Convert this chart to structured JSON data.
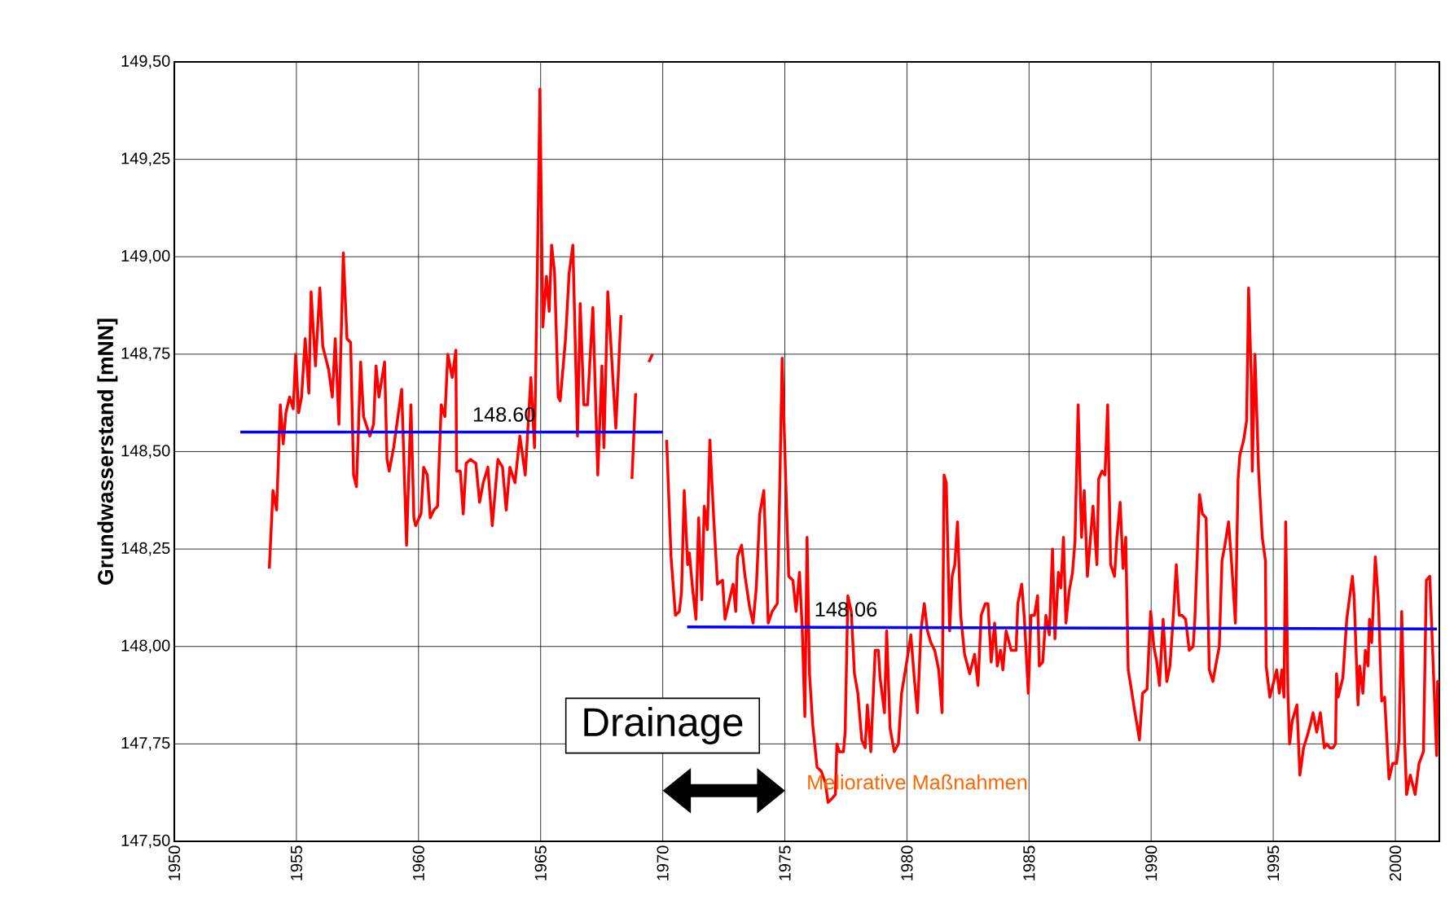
{
  "chart_data": {
    "type": "line",
    "ylabel": "Grundwasserstand [mNN]",
    "xlim": [
      1950,
      2001.8
    ],
    "xticks": [
      1950,
      1955,
      1960,
      1965,
      1970,
      1975,
      1980,
      1985,
      1990,
      1995,
      2000
    ],
    "ylim": [
      147.5,
      149.5
    ],
    "yticks": [
      {
        "value": 147.5,
        "label": "147,50"
      },
      {
        "value": 147.75,
        "label": "147,75"
      },
      {
        "value": 148.0,
        "label": "148,00"
      },
      {
        "value": 148.25,
        "label": "148,25"
      },
      {
        "value": 148.5,
        "label": "148,50"
      },
      {
        "value": 148.75,
        "label": "148,75"
      },
      {
        "value": 149.0,
        "label": "149,00"
      },
      {
        "value": 149.25,
        "label": "149,25"
      },
      {
        "value": 149.5,
        "label": "149,50"
      }
    ],
    "grid": true,
    "marker": "none",
    "series": [
      {
        "color": "#ff0000",
        "x": [
          1953.89,
          1954.04,
          1954.19,
          1954.34,
          1954.46,
          1954.57,
          1954.72,
          1954.87,
          1954.97,
          1955.09,
          1955.21,
          1955.36,
          1955.51,
          1955.6,
          1955.78,
          1955.96,
          1956.08,
          1956.32,
          1956.47,
          1956.59,
          1956.74,
          1956.92,
          1957.07,
          1957.22,
          1957.34,
          1957.46,
          1957.63,
          1957.75,
          1958.01,
          1958.16,
          1958.26,
          1958.38,
          1958.61,
          1958.71,
          1958.8,
          1958.98,
          1959.31,
          1959.51,
          1959.69,
          1959.81,
          1959.88,
          1960.1,
          1960.21,
          1960.36,
          1960.48,
          1960.63,
          1960.78,
          1960.93,
          1961.08,
          1961.2,
          1961.38,
          1961.53,
          1961.56,
          1961.71,
          1961.83,
          1961.95,
          1962.13,
          1962.35,
          1962.5,
          1962.65,
          1962.84,
          1963.02,
          1963.25,
          1963.44,
          1963.59,
          1963.74,
          1963.95,
          1964.15,
          1964.37,
          1964.6,
          1964.75,
          1964.9,
          1964.97,
          1965.09,
          1965.24,
          1965.35,
          1965.45,
          1965.57,
          1965.72,
          1965.8,
          1966.02,
          1966.17,
          1966.32,
          1966.51,
          1966.62,
          1966.77,
          1966.92,
          1967.14,
          1967.34,
          1967.51,
          1967.59,
          1967.75,
          1968.08,
          1968.29,
          1968.5,
          1968.74,
          1968.89,
          1969.15,
          1969.43,
          1969.58,
          1969.85,
          1970.16,
          1970.34,
          1970.52,
          1970.68,
          1970.77,
          1970.88,
          1971.02,
          1971.09,
          1971.22,
          1971.36,
          1971.47,
          1971.6,
          1971.7,
          1971.83,
          1971.93,
          1972.07,
          1972.24,
          1972.45,
          1972.55,
          1972.88,
          1972.99,
          1973.06,
          1973.23,
          1973.37,
          1973.56,
          1973.7,
          1973.83,
          1973.97,
          1974.14,
          1974.32,
          1974.48,
          1974.69,
          1974.78,
          1974.89,
          1975.03,
          1975.16,
          1975.33,
          1975.46,
          1975.6,
          1975.71,
          1975.82,
          1975.91,
          1976.01,
          1976.14,
          1976.32,
          1976.49,
          1976.66,
          1976.77,
          1976.93,
          1977.07,
          1977.13,
          1977.23,
          1977.4,
          1977.47,
          1977.58,
          1977.72,
          1977.85,
          1977.99,
          1978.15,
          1978.29,
          1978.38,
          1978.52,
          1978.7,
          1978.83,
          1978.9,
          1979.08,
          1979.17,
          1979.31,
          1979.48,
          1979.65,
          1979.78,
          1979.99,
          1980.16,
          1980.3,
          1980.43,
          1980.57,
          1980.71,
          1980.84,
          1980.98,
          1981.14,
          1981.3,
          1981.44,
          1981.52,
          1981.61,
          1981.75,
          1981.85,
          1981.96,
          1982.07,
          1982.2,
          1982.36,
          1982.57,
          1982.77,
          1982.91,
          1983.04,
          1983.21,
          1983.32,
          1983.45,
          1983.59,
          1983.7,
          1983.83,
          1983.93,
          1984.06,
          1984.27,
          1984.47,
          1984.54,
          1984.7,
          1984.81,
          1984.97,
          1985.08,
          1985.22,
          1985.35,
          1985.42,
          1985.56,
          1985.69,
          1985.83,
          1985.96,
          1986.06,
          1986.2,
          1986.3,
          1986.41,
          1986.51,
          1986.64,
          1986.78,
          1986.88,
          1987.01,
          1987.15,
          1987.26,
          1987.39,
          1987.62,
          1987.78,
          1987.85,
          1987.99,
          1988.11,
          1988.22,
          1988.34,
          1988.5,
          1988.6,
          1988.73,
          1988.85,
          1988.96,
          1989.06,
          1989.19,
          1989.31,
          1989.42,
          1989.52,
          1989.65,
          1989.83,
          1989.98,
          1990.11,
          1990.23,
          1990.34,
          1990.49,
          1990.64,
          1990.77,
          1990.9,
          1991.03,
          1991.15,
          1991.26,
          1991.41,
          1991.56,
          1991.72,
          1991.79,
          1991.98,
          1992.1,
          1992.25,
          1992.38,
          1992.53,
          1992.64,
          1992.79,
          1992.9,
          1993.02,
          1993.17,
          1993.3,
          1993.45,
          1993.56,
          1993.63,
          1993.79,
          1993.91,
          1993.99,
          1994.1,
          1994.14,
          1994.25,
          1994.4,
          1994.55,
          1994.68,
          1994.71,
          1994.86,
          1995.02,
          1995.14,
          1995.25,
          1995.35,
          1995.44,
          1995.51,
          1995.6,
          1995.67,
          1995.78,
          1995.97,
          1996.09,
          1996.24,
          1996.39,
          1996.52,
          1996.63,
          1996.78,
          1996.93,
          1997.09,
          1997.19,
          1997.32,
          1997.44,
          1997.55,
          1997.59,
          1997.66,
          1997.85,
          1998.01,
          1998.24,
          1998.31,
          1998.47,
          1998.54,
          1998.67,
          1998.77,
          1998.88,
          1998.94,
          1999.03,
          1999.18,
          1999.31,
          1999.44,
          1999.56,
          1999.74,
          1999.89,
          2000.05,
          2000.15,
          2000.26,
          2000.38,
          2000.46,
          2000.61,
          2000.81,
          2000.97,
          2001.15,
          2001.27,
          2001.41,
          2001.69,
          2001.73,
          2001.8
        ],
        "values": [
          148.2,
          148.4,
          148.35,
          148.62,
          148.52,
          148.6,
          148.64,
          148.61,
          148.75,
          148.6,
          148.64,
          148.79,
          148.65,
          148.91,
          148.72,
          148.92,
          148.77,
          148.71,
          148.64,
          148.79,
          148.57,
          149.01,
          148.79,
          148.78,
          148.44,
          148.41,
          148.73,
          148.59,
          148.54,
          148.57,
          148.72,
          148.64,
          148.73,
          148.48,
          148.45,
          148.51,
          148.66,
          148.26,
          148.62,
          148.33,
          148.31,
          148.34,
          148.46,
          148.44,
          148.33,
          148.35,
          148.36,
          148.62,
          148.59,
          148.75,
          148.69,
          148.76,
          148.45,
          148.45,
          148.34,
          148.47,
          148.48,
          148.47,
          148.37,
          148.42,
          148.46,
          148.31,
          148.48,
          148.46,
          148.35,
          148.46,
          148.42,
          148.54,
          148.44,
          148.69,
          148.51,
          149.11,
          149.43,
          148.82,
          148.95,
          148.86,
          149.03,
          148.96,
          148.64,
          148.63,
          148.79,
          148.96,
          149.03,
          148.54,
          148.88,
          148.62,
          148.62,
          148.87,
          148.44,
          148.72,
          148.51,
          148.91,
          148.56,
          148.85,
          null,
          148.43,
          148.65,
          null,
          148.73,
          148.75,
          null,
          148.53,
          148.23,
          148.08,
          148.09,
          148.14,
          148.4,
          148.21,
          148.24,
          148.15,
          148.07,
          148.33,
          148.12,
          148.36,
          148.3,
          148.53,
          148.35,
          148.16,
          148.17,
          148.07,
          148.16,
          148.09,
          148.23,
          148.26,
          148.18,
          148.1,
          148.06,
          148.15,
          148.34,
          148.4,
          148.06,
          148.09,
          148.11,
          148.37,
          148.74,
          148.44,
          148.18,
          148.17,
          148.09,
          148.19,
          148.05,
          147.82,
          148.28,
          147.93,
          147.8,
          147.69,
          147.68,
          147.65,
          147.6,
          147.61,
          147.62,
          147.75,
          147.73,
          147.73,
          147.78,
          148.13,
          148.09,
          147.93,
          147.88,
          147.76,
          147.74,
          147.85,
          147.73,
          147.99,
          147.99,
          147.92,
          147.83,
          148.04,
          147.79,
          147.73,
          147.75,
          147.88,
          147.96,
          148.03,
          147.92,
          147.83,
          148.04,
          148.11,
          148.04,
          148.01,
          147.99,
          147.94,
          147.83,
          148.44,
          148.42,
          148.04,
          148.18,
          148.21,
          148.32,
          148.08,
          147.98,
          147.93,
          147.98,
          147.9,
          148.08,
          148.11,
          148.11,
          147.96,
          148.06,
          147.95,
          147.99,
          147.94,
          148.04,
          147.99,
          147.99,
          148.11,
          148.16,
          148.07,
          147.88,
          148.08,
          148.08,
          148.13,
          147.95,
          147.96,
          148.08,
          148.03,
          148.25,
          148.02,
          148.19,
          148.15,
          148.28,
          148.06,
          148.14,
          148.19,
          148.27,
          148.62,
          148.28,
          148.4,
          148.18,
          148.36,
          148.21,
          148.43,
          148.45,
          148.44,
          148.62,
          148.21,
          148.18,
          148.28,
          148.37,
          148.2,
          148.28,
          147.94,
          147.89,
          147.84,
          147.8,
          147.76,
          147.88,
          147.89,
          148.09,
          148.0,
          147.96,
          147.9,
          148.07,
          147.91,
          147.95,
          148.07,
          148.21,
          148.08,
          148.08,
          148.07,
          147.99,
          148.0,
          148.07,
          148.39,
          148.34,
          148.33,
          147.94,
          147.91,
          147.95,
          148.0,
          148.22,
          148.26,
          148.32,
          148.21,
          148.06,
          148.43,
          148.49,
          148.53,
          148.58,
          148.92,
          148.69,
          148.45,
          148.75,
          148.45,
          148.28,
          148.22,
          147.95,
          147.87,
          147.91,
          147.94,
          147.88,
          147.94,
          147.87,
          148.32,
          147.88,
          147.75,
          147.81,
          147.85,
          147.67,
          147.74,
          147.77,
          147.8,
          147.83,
          147.78,
          147.83,
          147.74,
          147.75,
          147.74,
          147.74,
          147.75,
          147.93,
          147.87,
          147.92,
          148.07,
          148.18,
          148.13,
          147.85,
          147.95,
          147.88,
          147.99,
          147.95,
          148.07,
          148.01,
          148.23,
          148.11,
          147.86,
          147.87,
          147.66,
          147.7,
          147.7,
          147.76,
          148.09,
          147.76,
          147.62,
          147.67,
          147.62,
          147.7,
          147.73,
          148.17,
          148.18,
          147.72,
          147.91,
          147.91
        ]
      },
      {
        "color": "#0000ff",
        "x": [
          1952.7,
          1970.0
        ],
        "values": [
          148.55,
          148.55
        ]
      },
      {
        "color": "#0000ff",
        "x": [
          1971.0,
          2001.7
        ],
        "values": [
          148.05,
          148.045
        ]
      }
    ],
    "annotations": [
      {
        "text": "148.60",
        "x": 1963.5,
        "y": 148.55
      },
      {
        "text": "148.06",
        "x": 1977.5,
        "y": 148.05
      },
      "Drainage",
      "Meliorative Maßnahmen"
    ]
  }
}
